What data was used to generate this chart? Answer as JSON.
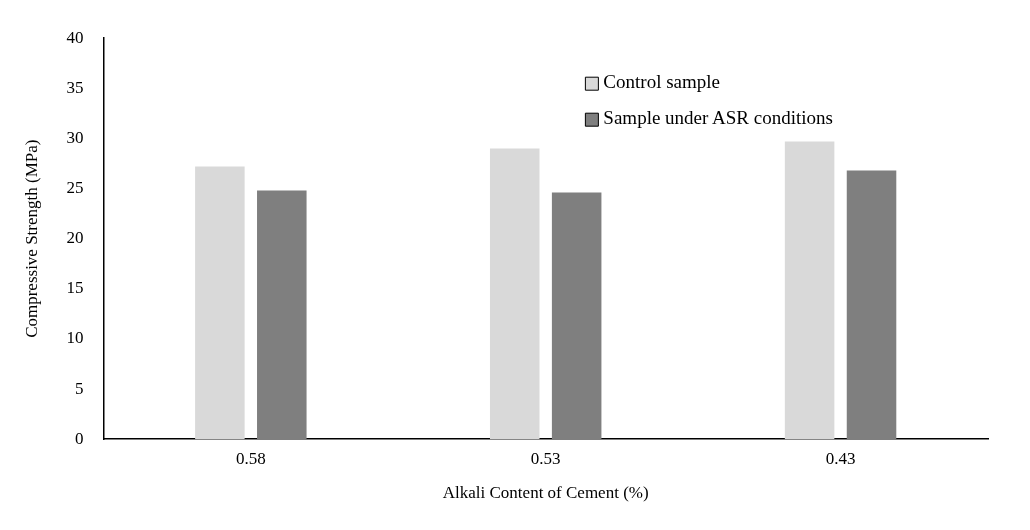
{
  "chart_data": {
    "type": "bar",
    "xlabel": "Alkali Content of Cement (%)",
    "ylabel": "Compressive Strength (MPa)",
    "categories": [
      "0.58",
      "0.53",
      "0.43"
    ],
    "series": [
      {
        "name": "Control sample",
        "color": "#d9d9d9",
        "values": [
          27.2,
          29.0,
          29.7
        ]
      },
      {
        "name": "Sample under ASR conditions",
        "color": "#7f7f7f",
        "values": [
          24.8,
          24.6,
          26.8
        ]
      }
    ],
    "ylim": [
      0,
      40
    ],
    "yticks": [
      0,
      5,
      10,
      15,
      20,
      25,
      30,
      35,
      40
    ],
    "grid": false,
    "legend": "top right"
  }
}
